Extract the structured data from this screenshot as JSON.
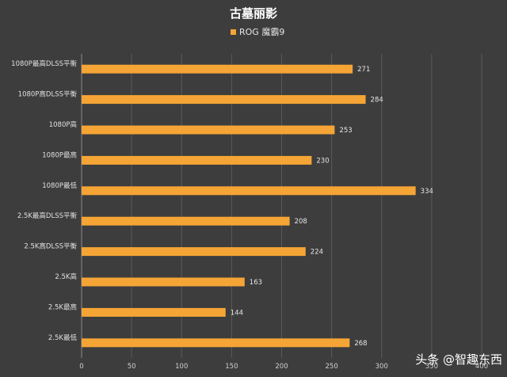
{
  "chart_data": {
    "type": "bar",
    "orientation": "horizontal",
    "title": "古墓丽影",
    "legend": "top",
    "grid": true,
    "categories": [
      "1080P最高DLSS平衡",
      "1080P高DLSS平衡",
      "1080P高",
      "1080P最高",
      "1080P最低",
      "2.5K最高DLSS平衡",
      "2.5K高DLSS平衡",
      "2.5K高",
      "2.5K最高",
      "2.5K最低"
    ],
    "series": [
      {
        "name": "ROG 魔霸9",
        "values": [
          271,
          284,
          253,
          230,
          334,
          208,
          224,
          163,
          144,
          268
        ]
      }
    ],
    "xlim": [
      0,
      400
    ],
    "xticks": [
      "0",
      "50",
      "100",
      "150",
      "200",
      "250",
      "300",
      "350",
      "400"
    ],
    "bar_color": "#f5a535"
  },
  "watermark": "头条 @智趣东西"
}
